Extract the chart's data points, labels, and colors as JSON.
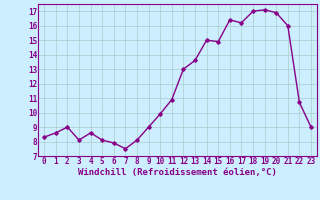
{
  "x": [
    0,
    1,
    2,
    3,
    4,
    5,
    6,
    7,
    8,
    9,
    10,
    11,
    12,
    13,
    14,
    15,
    16,
    17,
    18,
    19,
    20,
    21,
    22,
    23
  ],
  "y": [
    8.3,
    8.6,
    9.0,
    8.1,
    8.6,
    8.1,
    7.9,
    7.5,
    8.1,
    9.0,
    9.9,
    10.9,
    13.0,
    13.6,
    15.0,
    14.9,
    16.4,
    16.2,
    17.0,
    17.1,
    16.9,
    16.0,
    10.7,
    9.0
  ],
  "line_color": "#880088",
  "marker": "D",
  "marker_size": 1.8,
  "line_width": 1.0,
  "bg_color": "#cceeff",
  "grid_color": "#aacccc",
  "xlabel": "Windchill (Refroidissement éolien,°C)",
  "xlim": [
    -0.5,
    23.5
  ],
  "ylim": [
    7,
    17.5
  ],
  "yticks": [
    7,
    8,
    9,
    10,
    11,
    12,
    13,
    14,
    15,
    16,
    17
  ],
  "xticks": [
    0,
    1,
    2,
    3,
    4,
    5,
    6,
    7,
    8,
    9,
    10,
    11,
    12,
    13,
    14,
    15,
    16,
    17,
    18,
    19,
    20,
    21,
    22,
    23
  ],
  "tick_fontsize": 5.5,
  "xlabel_fontsize": 6.5,
  "tick_color": "#880088",
  "spine_color": "#880088",
  "label_color": "#880088"
}
